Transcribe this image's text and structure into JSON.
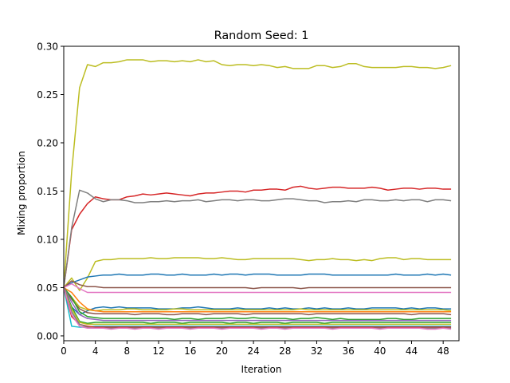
{
  "chart_data": {
    "type": "line",
    "title": "Random Seed: 1",
    "xlabel": "Iteration",
    "ylabel": "Mixing proportion",
    "xlim": [
      0,
      50
    ],
    "ylim": [
      -0.005,
      0.3
    ],
    "x_ticks": [
      "0",
      "4",
      "8",
      "12",
      "16",
      "20",
      "24",
      "28",
      "32",
      "36",
      "40",
      "44",
      "48"
    ],
    "y_ticks": [
      "0.00",
      "0.05",
      "0.10",
      "0.15",
      "0.20",
      "0.25",
      "0.30"
    ],
    "grid": false,
    "legend": "none",
    "x": [
      0,
      1,
      2,
      3,
      4,
      5,
      6,
      7,
      8,
      9,
      10,
      11,
      12,
      13,
      14,
      15,
      16,
      17,
      18,
      19,
      20,
      21,
      22,
      23,
      24,
      25,
      26,
      27,
      28,
      29,
      30,
      31,
      32,
      33,
      34,
      35,
      36,
      37,
      38,
      39,
      40,
      41,
      42,
      43,
      44,
      45,
      46,
      47,
      48,
      49
    ],
    "series": [
      {
        "color": "#bcbd22",
        "values": [
          0.05,
          0.17,
          0.257,
          0.281,
          0.279,
          0.283,
          0.283,
          0.284,
          0.286,
          0.286,
          0.286,
          0.284,
          0.285,
          0.285,
          0.284,
          0.285,
          0.284,
          0.286,
          0.284,
          0.285,
          0.281,
          0.28,
          0.281,
          0.281,
          0.28,
          0.281,
          0.28,
          0.278,
          0.279,
          0.277,
          0.277,
          0.277,
          0.28,
          0.28,
          0.278,
          0.279,
          0.282,
          0.282,
          0.279,
          0.278,
          0.278,
          0.278,
          0.278,
          0.279,
          0.279,
          0.278,
          0.278,
          0.277,
          0.278,
          0.28
        ]
      },
      {
        "color": "#d62728",
        "values": [
          0.05,
          0.11,
          0.126,
          0.137,
          0.144,
          0.142,
          0.141,
          0.141,
          0.144,
          0.145,
          0.147,
          0.146,
          0.147,
          0.148,
          0.147,
          0.146,
          0.145,
          0.147,
          0.148,
          0.148,
          0.149,
          0.15,
          0.15,
          0.149,
          0.151,
          0.151,
          0.152,
          0.152,
          0.151,
          0.154,
          0.155,
          0.153,
          0.152,
          0.153,
          0.154,
          0.154,
          0.153,
          0.153,
          0.153,
          0.154,
          0.153,
          0.151,
          0.152,
          0.153,
          0.153,
          0.152,
          0.153,
          0.153,
          0.152,
          0.152
        ]
      },
      {
        "color": "#7f7f7f",
        "values": [
          0.05,
          0.112,
          0.151,
          0.148,
          0.142,
          0.139,
          0.141,
          0.141,
          0.14,
          0.138,
          0.138,
          0.139,
          0.139,
          0.14,
          0.139,
          0.14,
          0.14,
          0.141,
          0.139,
          0.14,
          0.141,
          0.141,
          0.14,
          0.141,
          0.141,
          0.14,
          0.14,
          0.141,
          0.142,
          0.142,
          0.141,
          0.14,
          0.14,
          0.138,
          0.139,
          0.139,
          0.14,
          0.139,
          0.141,
          0.141,
          0.14,
          0.14,
          0.141,
          0.14,
          0.141,
          0.141,
          0.139,
          0.141,
          0.141,
          0.14
        ]
      },
      {
        "color": "#bcbd22",
        "values": [
          0.05,
          0.06,
          0.047,
          0.06,
          0.077,
          0.079,
          0.079,
          0.08,
          0.08,
          0.08,
          0.08,
          0.081,
          0.08,
          0.08,
          0.081,
          0.081,
          0.081,
          0.081,
          0.08,
          0.08,
          0.081,
          0.08,
          0.079,
          0.079,
          0.08,
          0.08,
          0.08,
          0.08,
          0.08,
          0.08,
          0.079,
          0.078,
          0.079,
          0.079,
          0.08,
          0.079,
          0.079,
          0.078,
          0.079,
          0.078,
          0.08,
          0.081,
          0.081,
          0.079,
          0.08,
          0.08,
          0.079,
          0.079,
          0.079,
          0.079
        ]
      },
      {
        "color": "#1f77b4",
        "values": [
          0.05,
          0.055,
          0.058,
          0.061,
          0.062,
          0.063,
          0.063,
          0.064,
          0.063,
          0.063,
          0.063,
          0.064,
          0.064,
          0.063,
          0.063,
          0.064,
          0.063,
          0.063,
          0.063,
          0.064,
          0.063,
          0.064,
          0.064,
          0.063,
          0.064,
          0.064,
          0.064,
          0.063,
          0.063,
          0.063,
          0.063,
          0.064,
          0.064,
          0.064,
          0.063,
          0.063,
          0.063,
          0.063,
          0.063,
          0.063,
          0.063,
          0.063,
          0.064,
          0.063,
          0.063,
          0.063,
          0.064,
          0.063,
          0.064,
          0.063
        ]
      },
      {
        "color": "#8c564b",
        "values": [
          0.05,
          0.057,
          0.053,
          0.051,
          0.051,
          0.05,
          0.05,
          0.05,
          0.05,
          0.05,
          0.05,
          0.05,
          0.05,
          0.05,
          0.05,
          0.05,
          0.05,
          0.05,
          0.05,
          0.05,
          0.05,
          0.05,
          0.05,
          0.05,
          0.049,
          0.05,
          0.05,
          0.05,
          0.05,
          0.05,
          0.049,
          0.05,
          0.05,
          0.05,
          0.05,
          0.05,
          0.05,
          0.05,
          0.05,
          0.05,
          0.05,
          0.05,
          0.05,
          0.05,
          0.05,
          0.05,
          0.05,
          0.05,
          0.05,
          0.05
        ]
      },
      {
        "color": "#e377c2",
        "values": [
          0.05,
          0.054,
          0.049,
          0.045,
          0.045,
          0.045,
          0.045,
          0.045,
          0.045,
          0.045,
          0.045,
          0.045,
          0.045,
          0.045,
          0.045,
          0.045,
          0.045,
          0.045,
          0.045,
          0.045,
          0.045,
          0.045,
          0.045,
          0.045,
          0.045,
          0.045,
          0.045,
          0.045,
          0.045,
          0.045,
          0.045,
          0.045,
          0.045,
          0.045,
          0.045,
          0.045,
          0.045,
          0.045,
          0.045,
          0.045,
          0.045,
          0.045,
          0.045,
          0.045,
          0.045,
          0.045,
          0.045,
          0.045,
          0.045,
          0.045
        ]
      },
      {
        "color": "#1f77b4",
        "values": [
          0.05,
          0.03,
          0.022,
          0.026,
          0.029,
          0.03,
          0.029,
          0.03,
          0.029,
          0.029,
          0.029,
          0.029,
          0.028,
          0.028,
          0.028,
          0.029,
          0.029,
          0.03,
          0.029,
          0.028,
          0.028,
          0.028,
          0.029,
          0.028,
          0.028,
          0.028,
          0.029,
          0.028,
          0.029,
          0.028,
          0.028,
          0.029,
          0.028,
          0.029,
          0.028,
          0.028,
          0.029,
          0.028,
          0.028,
          0.029,
          0.029,
          0.029,
          0.029,
          0.028,
          0.029,
          0.028,
          0.029,
          0.029,
          0.028,
          0.028
        ]
      },
      {
        "color": "#bcbd22",
        "values": [
          0.05,
          0.04,
          0.03,
          0.027,
          0.026,
          0.027,
          0.027,
          0.027,
          0.028,
          0.028,
          0.027,
          0.027,
          0.027,
          0.027,
          0.028,
          0.028,
          0.027,
          0.027,
          0.027,
          0.027,
          0.027,
          0.027,
          0.027,
          0.027,
          0.027,
          0.027,
          0.027,
          0.027,
          0.027,
          0.027,
          0.028,
          0.027,
          0.027,
          0.027,
          0.027,
          0.027,
          0.027,
          0.027,
          0.027,
          0.027,
          0.027,
          0.027,
          0.027,
          0.027,
          0.027,
          0.027,
          0.027,
          0.027,
          0.027,
          0.026
        ]
      },
      {
        "color": "#ff7f0e",
        "values": [
          0.05,
          0.045,
          0.035,
          0.028,
          0.026,
          0.025,
          0.025,
          0.025,
          0.025,
          0.025,
          0.025,
          0.025,
          0.025,
          0.025,
          0.025,
          0.025,
          0.025,
          0.025,
          0.025,
          0.025,
          0.025,
          0.025,
          0.025,
          0.025,
          0.025,
          0.025,
          0.025,
          0.025,
          0.025,
          0.025,
          0.025,
          0.025,
          0.025,
          0.025,
          0.025,
          0.025,
          0.025,
          0.025,
          0.025,
          0.025,
          0.025,
          0.025,
          0.025,
          0.025,
          0.025,
          0.025,
          0.025,
          0.025,
          0.025,
          0.025
        ]
      },
      {
        "color": "#8c564b",
        "values": [
          0.05,
          0.038,
          0.028,
          0.024,
          0.023,
          0.023,
          0.023,
          0.023,
          0.023,
          0.022,
          0.023,
          0.023,
          0.023,
          0.022,
          0.022,
          0.023,
          0.023,
          0.023,
          0.022,
          0.023,
          0.023,
          0.023,
          0.023,
          0.022,
          0.023,
          0.023,
          0.023,
          0.023,
          0.023,
          0.023,
          0.023,
          0.022,
          0.023,
          0.023,
          0.023,
          0.023,
          0.023,
          0.023,
          0.023,
          0.023,
          0.023,
          0.023,
          0.023,
          0.023,
          0.022,
          0.023,
          0.023,
          0.023,
          0.023,
          0.022
        ]
      },
      {
        "color": "#2ca02c",
        "values": [
          0.05,
          0.04,
          0.025,
          0.02,
          0.019,
          0.018,
          0.018,
          0.018,
          0.018,
          0.018,
          0.018,
          0.018,
          0.018,
          0.018,
          0.017,
          0.018,
          0.018,
          0.017,
          0.018,
          0.018,
          0.018,
          0.019,
          0.018,
          0.018,
          0.019,
          0.018,
          0.018,
          0.018,
          0.018,
          0.017,
          0.018,
          0.018,
          0.019,
          0.018,
          0.017,
          0.018,
          0.017,
          0.017,
          0.017,
          0.017,
          0.017,
          0.018,
          0.018,
          0.017,
          0.017,
          0.018,
          0.018,
          0.018,
          0.018,
          0.018
        ]
      },
      {
        "color": "#9467bd",
        "values": [
          0.05,
          0.035,
          0.022,
          0.018,
          0.017,
          0.016,
          0.016,
          0.016,
          0.016,
          0.016,
          0.016,
          0.016,
          0.016,
          0.016,
          0.016,
          0.016,
          0.016,
          0.016,
          0.016,
          0.016,
          0.016,
          0.016,
          0.016,
          0.016,
          0.016,
          0.016,
          0.016,
          0.016,
          0.016,
          0.016,
          0.016,
          0.016,
          0.016,
          0.016,
          0.016,
          0.016,
          0.016,
          0.016,
          0.016,
          0.016,
          0.016,
          0.016,
          0.016,
          0.016,
          0.016,
          0.016,
          0.016,
          0.016,
          0.016,
          0.016
        ]
      },
      {
        "color": "#2ca02c",
        "values": [
          0.05,
          0.03,
          0.015,
          0.013,
          0.014,
          0.014,
          0.014,
          0.014,
          0.014,
          0.014,
          0.014,
          0.013,
          0.014,
          0.014,
          0.014,
          0.013,
          0.014,
          0.014,
          0.014,
          0.014,
          0.014,
          0.013,
          0.014,
          0.014,
          0.013,
          0.014,
          0.014,
          0.014,
          0.013,
          0.014,
          0.014,
          0.014,
          0.014,
          0.013,
          0.014,
          0.014,
          0.014,
          0.014,
          0.014,
          0.014,
          0.014,
          0.014,
          0.014,
          0.014,
          0.014,
          0.014,
          0.014,
          0.014,
          0.014,
          0.014
        ]
      },
      {
        "color": "#bcbd22",
        "values": [
          0.05,
          0.028,
          0.014,
          0.012,
          0.012,
          0.012,
          0.012,
          0.012,
          0.012,
          0.012,
          0.012,
          0.012,
          0.012,
          0.012,
          0.012,
          0.012,
          0.012,
          0.012,
          0.012,
          0.012,
          0.012,
          0.012,
          0.012,
          0.012,
          0.012,
          0.012,
          0.012,
          0.012,
          0.012,
          0.012,
          0.012,
          0.012,
          0.012,
          0.012,
          0.012,
          0.012,
          0.012,
          0.012,
          0.012,
          0.012,
          0.012,
          0.012,
          0.012,
          0.012,
          0.012,
          0.012,
          0.012,
          0.012,
          0.012,
          0.012
        ]
      },
      {
        "color": "#17becf",
        "values": [
          0.05,
          0.01,
          0.009,
          0.009,
          0.01,
          0.01,
          0.01,
          0.01,
          0.01,
          0.01,
          0.01,
          0.01,
          0.01,
          0.01,
          0.01,
          0.01,
          0.01,
          0.01,
          0.01,
          0.01,
          0.01,
          0.01,
          0.01,
          0.01,
          0.01,
          0.01,
          0.01,
          0.01,
          0.01,
          0.01,
          0.01,
          0.01,
          0.01,
          0.01,
          0.01,
          0.01,
          0.01,
          0.01,
          0.01,
          0.01,
          0.01,
          0.01,
          0.01,
          0.01,
          0.01,
          0.01,
          0.01,
          0.01,
          0.01,
          0.01
        ]
      },
      {
        "color": "#d62728",
        "values": [
          0.05,
          0.02,
          0.012,
          0.01,
          0.009,
          0.009,
          0.009,
          0.009,
          0.009,
          0.009,
          0.009,
          0.009,
          0.009,
          0.009,
          0.009,
          0.009,
          0.009,
          0.009,
          0.009,
          0.009,
          0.009,
          0.009,
          0.009,
          0.009,
          0.009,
          0.009,
          0.009,
          0.009,
          0.009,
          0.009,
          0.009,
          0.009,
          0.009,
          0.009,
          0.009,
          0.009,
          0.009,
          0.009,
          0.009,
          0.009,
          0.009,
          0.009,
          0.009,
          0.009,
          0.009,
          0.009,
          0.009,
          0.009,
          0.009,
          0.009
        ]
      },
      {
        "color": "#7f7f7f",
        "values": [
          0.05,
          0.025,
          0.012,
          0.009,
          0.008,
          0.008,
          0.008,
          0.008,
          0.008,
          0.008,
          0.008,
          0.008,
          0.008,
          0.008,
          0.008,
          0.008,
          0.008,
          0.008,
          0.008,
          0.008,
          0.008,
          0.008,
          0.008,
          0.008,
          0.008,
          0.008,
          0.008,
          0.008,
          0.008,
          0.008,
          0.008,
          0.008,
          0.008,
          0.008,
          0.008,
          0.008,
          0.008,
          0.008,
          0.008,
          0.008,
          0.008,
          0.008,
          0.008,
          0.008,
          0.008,
          0.008,
          0.008,
          0.008,
          0.008,
          0.008
        ]
      },
      {
        "color": "#e377c2",
        "values": [
          0.05,
          0.022,
          0.01,
          0.008,
          0.008,
          0.008,
          0.007,
          0.008,
          0.008,
          0.007,
          0.008,
          0.008,
          0.007,
          0.008,
          0.008,
          0.008,
          0.007,
          0.008,
          0.008,
          0.008,
          0.007,
          0.008,
          0.008,
          0.008,
          0.008,
          0.007,
          0.008,
          0.008,
          0.007,
          0.008,
          0.008,
          0.008,
          0.008,
          0.008,
          0.007,
          0.008,
          0.008,
          0.008,
          0.008,
          0.008,
          0.007,
          0.008,
          0.008,
          0.008,
          0.008,
          0.008,
          0.007,
          0.007,
          0.008,
          0.007
        ]
      }
    ]
  }
}
